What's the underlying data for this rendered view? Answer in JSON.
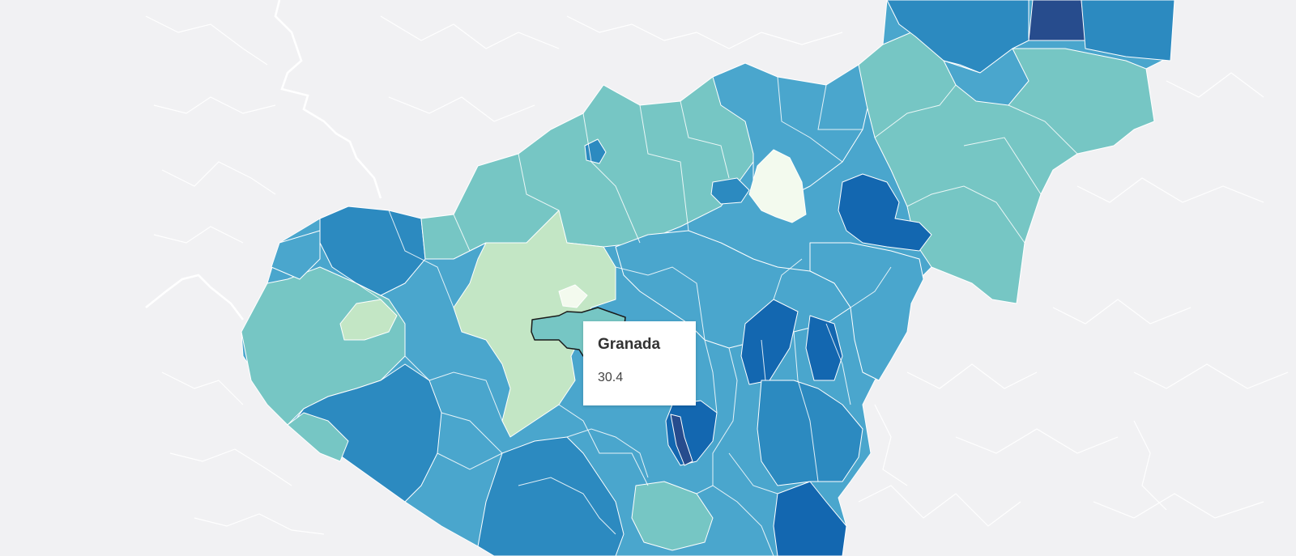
{
  "map": {
    "tooltip": {
      "name": "Granada",
      "value": "30.4"
    },
    "colors": {
      "background": "#f1f1f3",
      "scale": [
        "#f3faee",
        "#c3e6c5",
        "#76c6c4",
        "#4aa6cd",
        "#2c8ac0",
        "#1367b0",
        "#274c8d"
      ],
      "highlight_outline": "#1a1a1a"
    }
  }
}
